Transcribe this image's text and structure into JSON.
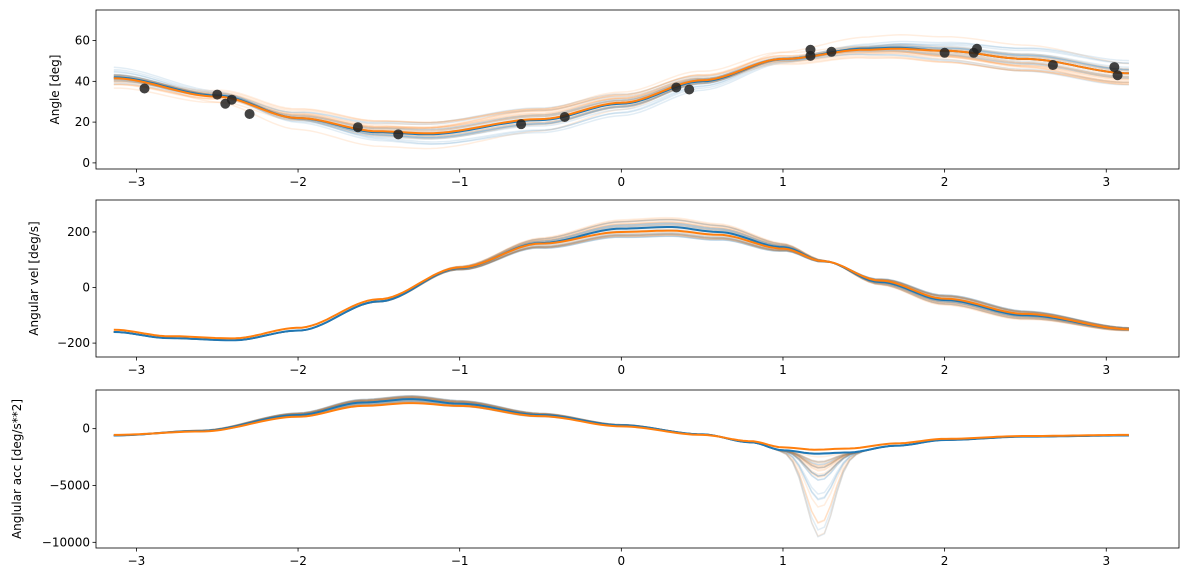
{
  "chart_data": [
    {
      "type": "line",
      "ylabel": "Angle [deg]",
      "xlim": [
        -3.25,
        3.45
      ],
      "ylim": [
        -3,
        75
      ],
      "xticks": [
        "−3",
        "−2",
        "−1",
        "0",
        "1",
        "2",
        "3"
      ],
      "yticks": [
        "0",
        "20",
        "40",
        "60"
      ],
      "ytick_values": [
        0,
        20,
        40,
        60
      ],
      "x_tick_values": [
        -3,
        -2,
        -1,
        0,
        1,
        2,
        3
      ],
      "colors": {
        "blue": "#1f77b4",
        "orange": "#ff7f0e",
        "points": "#222222"
      },
      "points": [
        {
          "x": -2.95,
          "y": 36.5
        },
        {
          "x": -2.5,
          "y": 33.5
        },
        {
          "x": -2.41,
          "y": 31
        },
        {
          "x": -2.45,
          "y": 29
        },
        {
          "x": -2.3,
          "y": 24
        },
        {
          "x": -1.63,
          "y": 17.5
        },
        {
          "x": -1.38,
          "y": 14
        },
        {
          "x": -0.62,
          "y": 19
        },
        {
          "x": -0.35,
          "y": 22.5
        },
        {
          "x": 0.34,
          "y": 37
        },
        {
          "x": 0.42,
          "y": 36
        },
        {
          "x": 1.17,
          "y": 55.5
        },
        {
          "x": 1.17,
          "y": 52.5
        },
        {
          "x": 1.3,
          "y": 54.5
        },
        {
          "x": 2.0,
          "y": 54
        },
        {
          "x": 2.18,
          "y": 54
        },
        {
          "x": 2.2,
          "y": 56
        },
        {
          "x": 2.67,
          "y": 48
        },
        {
          "x": 3.05,
          "y": 47
        },
        {
          "x": 3.07,
          "y": 43
        }
      ],
      "series": [
        {
          "color": "blue",
          "x": [
            -3.14,
            -2.5,
            -2.0,
            -1.5,
            -1.2,
            -0.5,
            0.0,
            0.5,
            1.0,
            1.5,
            1.7,
            2.0,
            2.5,
            3.14
          ],
          "values": [
            42,
            33,
            22,
            15,
            14,
            21,
            29,
            40,
            51,
            56,
            56.5,
            55,
            51,
            44
          ]
        },
        {
          "color": "orange",
          "x": [
            -3.14,
            -2.5,
            -2.0,
            -1.5,
            -1.2,
            -0.5,
            0.0,
            0.5,
            1.0,
            1.5,
            1.7,
            2.0,
            2.5,
            3.14
          ],
          "values": [
            41.5,
            32.5,
            22,
            15.5,
            14.5,
            21.5,
            29.5,
            40.5,
            51,
            55.5,
            56,
            55,
            51,
            44
          ]
        }
      ]
    },
    {
      "type": "line",
      "ylabel": "Angular vel [deg/s]",
      "xlim": [
        -3.25,
        3.45
      ],
      "ylim": [
        -250,
        315
      ],
      "xticks": [
        "−3",
        "−2",
        "−1",
        "0",
        "1",
        "2",
        "3"
      ],
      "yticks": [
        "−200",
        "0",
        "200"
      ],
      "ytick_values": [
        -200,
        0,
        200
      ],
      "x_tick_values": [
        -3,
        -2,
        -1,
        0,
        1,
        2,
        3
      ],
      "series": [
        {
          "color": "blue",
          "x": [
            -3.14,
            -2.8,
            -2.4,
            -2.0,
            -1.5,
            -1.0,
            -0.5,
            0.0,
            0.3,
            0.6,
            1.0,
            1.25,
            1.6,
            2.0,
            2.5,
            3.14
          ],
          "values": [
            -160,
            -182,
            -190,
            -155,
            -50,
            70,
            160,
            212,
            218,
            200,
            145,
            95,
            20,
            -45,
            -100,
            -150
          ]
        },
        {
          "color": "orange",
          "x": [
            -3.14,
            -2.8,
            -2.4,
            -2.0,
            -1.5,
            -1.0,
            -0.5,
            0.0,
            0.3,
            0.6,
            1.0,
            1.25,
            1.6,
            2.0,
            2.5,
            3.14
          ],
          "values": [
            -152,
            -175,
            -183,
            -145,
            -42,
            72,
            158,
            200,
            205,
            190,
            140,
            95,
            25,
            -40,
            -95,
            -150
          ]
        }
      ]
    },
    {
      "type": "line",
      "ylabel": "Anglular acc [deg/s**2]",
      "xlim": [
        -3.25,
        3.45
      ],
      "ylim": [
        -10500,
        3400
      ],
      "xticks": [
        "−3",
        "−2",
        "−1",
        "0",
        "1",
        "2",
        "3"
      ],
      "yticks": [
        "−10000",
        "−5000",
        "0"
      ],
      "ytick_values": [
        -10000,
        -5000,
        0
      ],
      "x_tick_values": [
        -3,
        -2,
        -1,
        0,
        1,
        2,
        3
      ],
      "series": [
        {
          "color": "blue",
          "x": [
            -3.14,
            -2.6,
            -2.0,
            -1.6,
            -1.3,
            -1.0,
            -0.5,
            0.0,
            0.5,
            0.8,
            1.0,
            1.2,
            1.4,
            1.7,
            2.0,
            2.5,
            3.14
          ],
          "values": [
            -600,
            -200,
            1200,
            2300,
            2600,
            2200,
            1200,
            300,
            -500,
            -1200,
            -1900,
            -2200,
            -2100,
            -1500,
            -1000,
            -700,
            -600
          ]
        },
        {
          "color": "orange",
          "x": [
            -3.14,
            -2.6,
            -2.0,
            -1.6,
            -1.3,
            -1.0,
            -0.5,
            0.0,
            0.5,
            0.8,
            1.0,
            1.2,
            1.4,
            1.7,
            2.0,
            2.5,
            3.14
          ],
          "values": [
            -550,
            -250,
            1050,
            2000,
            2250,
            2000,
            1100,
            200,
            -550,
            -1100,
            -1650,
            -1850,
            -1750,
            -1300,
            -900,
            -650,
            -550
          ]
        }
      ]
    }
  ]
}
